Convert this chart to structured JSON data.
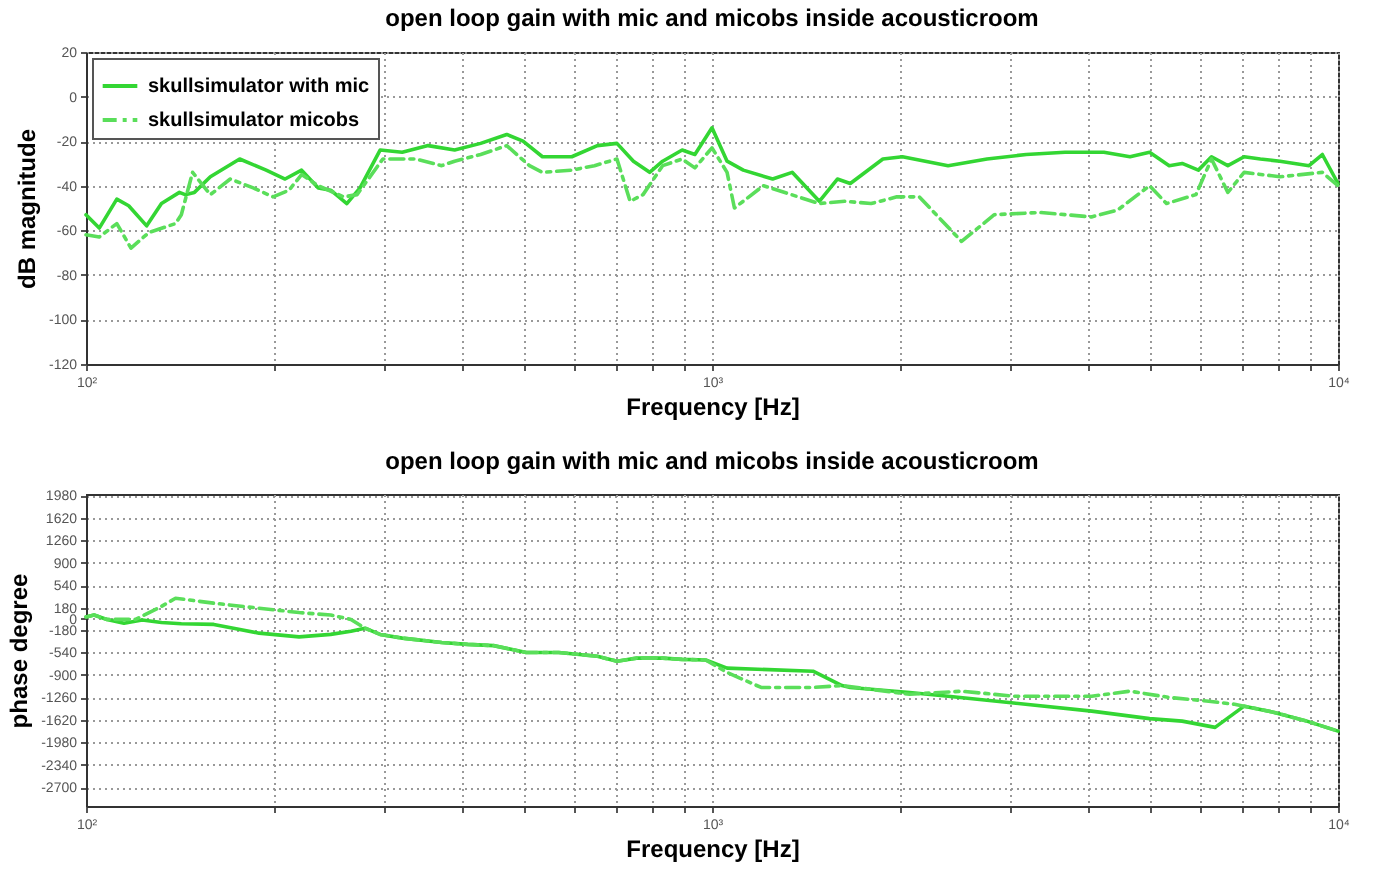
{
  "chart_data": [
    {
      "type": "line",
      "title": "open loop gain with mic and micobs inside acousticroom",
      "xlabel": "Frequency [Hz]",
      "ylabel": "dB magnitude",
      "log": "x",
      "grid": true,
      "legend": "top left",
      "xlim": [
        100,
        10000
      ],
      "xticks": [
        {
          "value": 100,
          "label": "10²"
        },
        {
          "value": 200,
          "label": null
        },
        {
          "value": 300,
          "label": null
        },
        {
          "value": 400,
          "label": null
        },
        {
          "value": 500,
          "label": null
        },
        {
          "value": 600,
          "label": null
        },
        {
          "value": 700,
          "label": null
        },
        {
          "value": 800,
          "label": null
        },
        {
          "value": 900,
          "label": null
        },
        {
          "value": 1000,
          "label": "10³"
        },
        {
          "value": 2000,
          "label": null
        },
        {
          "value": 3000,
          "label": null
        },
        {
          "value": 4000,
          "label": null
        },
        {
          "value": 5000,
          "label": null
        },
        {
          "value": 6000,
          "label": null
        },
        {
          "value": 7000,
          "label": null
        },
        {
          "value": 8000,
          "label": null
        },
        {
          "value": 9000,
          "label": null
        },
        {
          "value": 10000,
          "label": "10⁴"
        }
      ],
      "ylim": [
        -120,
        20
      ],
      "yticks": [
        -120,
        -100,
        -80,
        -60,
        -40,
        -20,
        0,
        20
      ],
      "series": [
        {
          "name": "skullsimulator with mic",
          "color": "#33d633",
          "line_style": "solid",
          "x": [
            100,
            105,
            112,
            117,
            125,
            132,
            141,
            144,
            149,
            158,
            176,
            194,
            208,
            221,
            235,
            246,
            261,
            274,
            295,
            320,
            352,
            388,
            427,
            470,
            499,
            536,
            597,
            656,
            705,
            749,
            795,
            834,
            896,
            939,
            1000,
            1057,
            1122,
            1250,
            1343,
            1484,
            1586,
            1663,
            1875,
            2015,
            2383,
            2750,
            3176,
            3664,
            4227,
            4653,
            5000,
            5375,
            5637,
            5983,
            6280,
            6668,
            7080,
            7516,
            8078,
            8990,
            9440,
            10000
          ],
          "values": [
            -53,
            -59,
            -46,
            -49,
            -58,
            -48,
            -43,
            -44,
            -43,
            -36,
            -28,
            -33,
            -37,
            -33,
            -41,
            -42,
            -48,
            -41,
            -24,
            -25,
            -22,
            -24,
            -21,
            -17,
            -20,
            -27,
            -27,
            -22,
            -21,
            -29,
            -34,
            -29,
            -24,
            -26,
            -14,
            -29,
            -33,
            -37,
            -34,
            -47,
            -37,
            -39,
            -28,
            -27,
            -31,
            -28,
            -26,
            -25,
            -25,
            -27,
            -25,
            -31,
            -30,
            -33,
            -27,
            -31,
            -27,
            -28,
            -29,
            -31,
            -26,
            -39
          ]
        },
        {
          "name": "skullsimulator micobs",
          "color": "#5ade5a",
          "line_style": "dashed",
          "x": [
            100,
            105,
            112,
            118,
            126,
            139,
            142,
            148,
            158,
            170,
            185,
            199,
            211,
            221,
            235,
            258,
            271,
            298,
            336,
            370,
            388,
            427,
            470,
            511,
            536,
            597,
            649,
            705,
            740,
            776,
            834,
            896,
            939,
            1000,
            1057,
            1086,
            1208,
            1484,
            1629,
            1795,
            1974,
            2144,
            2504,
            2825,
            3337,
            4038,
            4443,
            5000,
            5322,
            5930,
            6280,
            6668,
            7080,
            8078,
            9440,
            10000
          ],
          "values": [
            -62,
            -63,
            -57,
            -68,
            -61,
            -57,
            -53,
            -34,
            -44,
            -37,
            -41,
            -45,
            -42,
            -35,
            -40,
            -45,
            -44,
            -28,
            -28,
            -31,
            -29,
            -26,
            -22,
            -31,
            -34,
            -33,
            -31,
            -28,
            -47,
            -44,
            -31,
            -28,
            -32,
            -23,
            -34,
            -50,
            -40,
            -48,
            -47,
            -48,
            -45,
            -45,
            -65,
            -53,
            -52,
            -54,
            -51,
            -40,
            -48,
            -44,
            -28,
            -43,
            -34,
            -36,
            -34,
            -40
          ]
        }
      ]
    },
    {
      "type": "line",
      "title": "open loop gain with mic and micobs inside acousticroom",
      "xlabel": "Frequency [Hz]",
      "ylabel": "phase degree",
      "log": "x",
      "grid": true,
      "xlim": [
        100,
        10000
      ],
      "xticks": [
        {
          "value": 100,
          "label": "10²"
        },
        {
          "value": 200,
          "label": null
        },
        {
          "value": 300,
          "label": null
        },
        {
          "value": 400,
          "label": null
        },
        {
          "value": 500,
          "label": null
        },
        {
          "value": 600,
          "label": null
        },
        {
          "value": 700,
          "label": null
        },
        {
          "value": 800,
          "label": null
        },
        {
          "value": 900,
          "label": null
        },
        {
          "value": 1000,
          "label": "10³"
        },
        {
          "value": 2000,
          "label": null
        },
        {
          "value": 3000,
          "label": null
        },
        {
          "value": 4000,
          "label": null
        },
        {
          "value": 5000,
          "label": null
        },
        {
          "value": 6000,
          "label": null
        },
        {
          "value": 7000,
          "label": null
        },
        {
          "value": 8000,
          "label": null
        },
        {
          "value": 9000,
          "label": null
        },
        {
          "value": 10000,
          "label": "10⁴"
        }
      ],
      "ylim": [
        -3000,
        2000
      ],
      "yticks": [
        -2700,
        -2340,
        -1980,
        -1620,
        -1260,
        -900,
        -540,
        -180,
        0,
        180,
        540,
        900,
        1260,
        1620,
        1980
      ],
      "series": [
        {
          "color": "#33d633",
          "line_style": "solid",
          "x": [
            100,
            103,
            108,
            115,
            123,
            132,
            142,
            160,
            172,
            189,
            219,
            246,
            265,
            279,
            295,
            320,
            370,
            407,
            448,
            505,
            569,
            656,
            705,
            758,
            834,
            896,
            977,
            1057,
            1450,
            1613,
            1663,
            2069,
            2383,
            3033,
            4042,
            5000,
            5637,
            6363,
            7080,
            7913,
            8917,
            10000
          ],
          "values": [
            30,
            60,
            -10,
            -70,
            -20,
            -60,
            -80,
            -90,
            -150,
            -230,
            -290,
            -250,
            -200,
            -150,
            -250,
            -310,
            -380,
            -410,
            -430,
            -540,
            -540,
            -600,
            -680,
            -630,
            -630,
            -650,
            -660,
            -790,
            -840,
            -1070,
            -1100,
            -1180,
            -1240,
            -1350,
            -1480,
            -1600,
            -1640,
            -1740,
            -1400,
            -1500,
            -1640,
            -1800
          ]
        },
        {
          "color": "#5ade5a",
          "line_style": "dashed",
          "x": [
            100,
            103,
            108,
            120,
            131,
            139,
            160,
            189,
            219,
            246,
            265,
            279,
            295,
            320,
            370,
            407,
            448,
            505,
            569,
            656,
            705,
            758,
            834,
            896,
            977,
            1057,
            1198,
            1450,
            1613,
            2069,
            2505,
            3033,
            4042,
            4653,
            5375,
            6216,
            6835,
            7080,
            7913,
            8917,
            10000
          ],
          "values": [
            30,
            60,
            -10,
            -10,
            180,
            330,
            250,
            170,
            100,
            60,
            -10,
            -150,
            -250,
            -310,
            -380,
            -410,
            -430,
            -540,
            -540,
            -600,
            -680,
            -630,
            -630,
            -650,
            -660,
            -860,
            -1100,
            -1100,
            -1070,
            -1210,
            -1160,
            -1240,
            -1240,
            -1160,
            -1260,
            -1320,
            -1370,
            -1400,
            -1500,
            -1640,
            -1800
          ]
        }
      ]
    }
  ]
}
